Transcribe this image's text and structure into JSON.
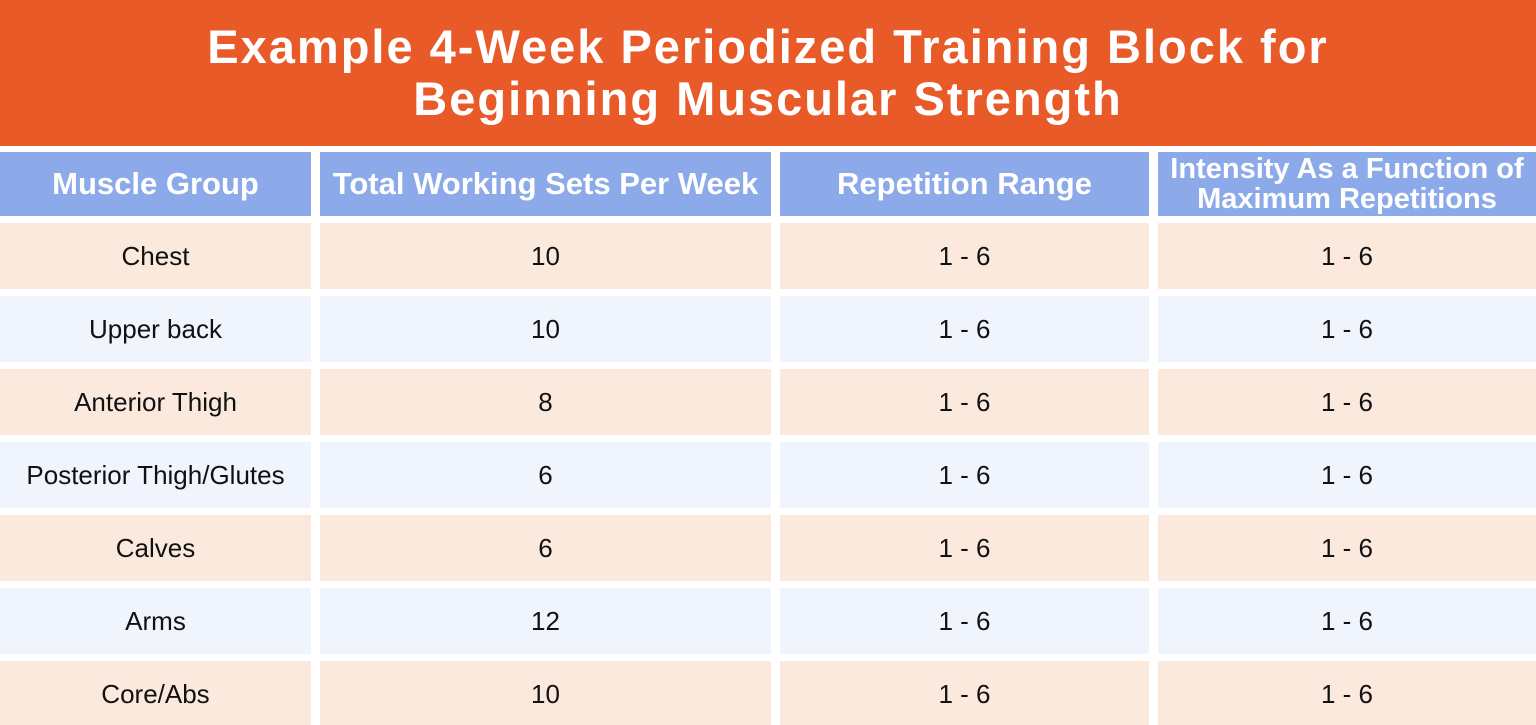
{
  "title": {
    "line1": "Example 4-Week Periodized Training Block for",
    "line2": "Beginning Muscular Strength"
  },
  "chart_data": {
    "type": "table",
    "title": "Example 4-Week Periodized Training Block for Beginning Muscular Strength",
    "columns": [
      "Muscle Group",
      "Total Working Sets Per Week",
      "Repetition Range",
      "Intensity As a Function of Maximum Repetitions"
    ],
    "rows": [
      [
        "Chest",
        "10",
        "1 - 6",
        "1 - 6"
      ],
      [
        "Upper back",
        "10",
        "1 - 6",
        "1 - 6"
      ],
      [
        "Anterior Thigh",
        "8",
        "1 - 6",
        "1 - 6"
      ],
      [
        "Posterior Thigh/Glutes",
        "6",
        "1 - 6",
        "1 - 6"
      ],
      [
        "Calves",
        "6",
        "1 - 6",
        "1 - 6"
      ],
      [
        "Arms",
        "12",
        "1 - 6",
        "1 - 6"
      ],
      [
        "Core/Abs",
        "10",
        "1 - 6",
        "1 - 6"
      ]
    ]
  },
  "colors": {
    "banner_orange": "#E85A28",
    "header_blue": "#8CA9E9",
    "row_peach": "#FCE9DE",
    "row_pale_blue": "#F0F4FC",
    "header_text": "#FFFFFF",
    "body_text": "#111111"
  }
}
